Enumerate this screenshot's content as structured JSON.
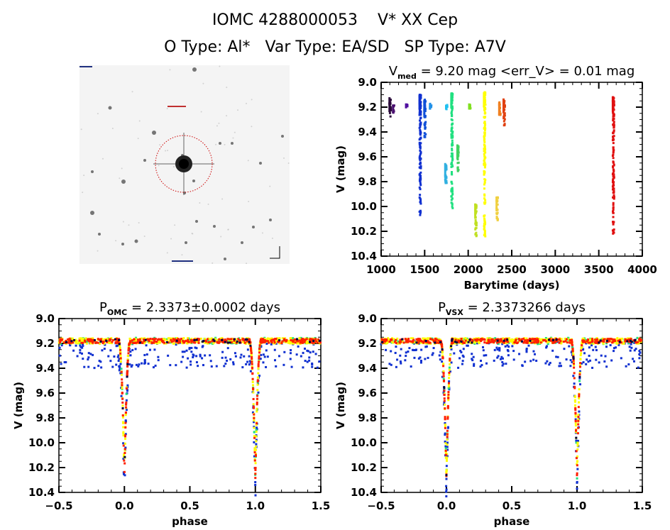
{
  "header": {
    "title": "IOMC 4288000053    V* XX Cep",
    "subtitle": "O Type: Al*   Var Type: EA/SD   SP Type: A7V"
  },
  "sky_image": {
    "description": "finder chart image",
    "target_circle_color": "#cc0000"
  },
  "chart_data": [
    {
      "id": "lightcurve",
      "type": "scatter",
      "title_main": "V",
      "title_sub": "med",
      "title_rest": " = 9.20 mag <err_V> = 0.01 mag",
      "xlabel": "Barytime (days)",
      "ylabel": "V (mag)",
      "xlim": [
        1000,
        4000
      ],
      "ylim": [
        10.4,
        9.0
      ],
      "xticks": [
        1000,
        1500,
        2000,
        2500,
        3000,
        3500,
        4000
      ],
      "yticks": [
        "9.0",
        "9.2",
        "9.4",
        "9.6",
        "9.8",
        "10.0",
        "10.2",
        "10.4"
      ],
      "ytick_values": [
        9.0,
        9.2,
        9.4,
        9.6,
        9.8,
        10.0,
        10.2,
        10.4
      ],
      "groups": [
        {
          "x": 1100,
          "ymin": 9.12,
          "ymax": 9.28,
          "color": "#2a0a3a"
        },
        {
          "x": 1140,
          "ymin": 9.18,
          "ymax": 9.25,
          "color": "#4a1070"
        },
        {
          "x": 1290,
          "ymin": 9.17,
          "ymax": 9.21,
          "color": "#5010a0"
        },
        {
          "x": 1445,
          "ymin": 9.1,
          "ymax": 10.08,
          "color": "#1030d0"
        },
        {
          "x": 1500,
          "ymin": 9.14,
          "ymax": 9.46,
          "color": "#1050d8"
        },
        {
          "x": 1565,
          "ymin": 9.17,
          "ymax": 9.22,
          "color": "#2090e8"
        },
        {
          "x": 1750,
          "ymin": 9.18,
          "ymax": 9.22,
          "color": "#20c0f0"
        },
        {
          "x": 1740,
          "ymin": 9.65,
          "ymax": 9.83,
          "color": "#30b0e0"
        },
        {
          "x": 1810,
          "ymin": 9.09,
          "ymax": 10.03,
          "color": "#20e080"
        },
        {
          "x": 1880,
          "ymin": 9.5,
          "ymax": 9.72,
          "color": "#40d060"
        },
        {
          "x": 2015,
          "ymin": 9.17,
          "ymax": 9.22,
          "color": "#80e020"
        },
        {
          "x": 2085,
          "ymin": 9.98,
          "ymax": 10.24,
          "color": "#c0e020"
        },
        {
          "x": 2185,
          "ymin": 9.08,
          "ymax": 10.3,
          "color": "#ffff00"
        },
        {
          "x": 2330,
          "ymin": 9.92,
          "ymax": 10.13,
          "color": "#f0d040"
        },
        {
          "x": 2360,
          "ymin": 9.16,
          "ymax": 9.27,
          "color": "#f08020"
        },
        {
          "x": 2410,
          "ymin": 9.13,
          "ymax": 9.35,
          "color": "#e04010"
        },
        {
          "x": 3665,
          "ymin": 9.12,
          "ymax": 10.22,
          "color": "#e01010"
        }
      ]
    },
    {
      "id": "phase_omc",
      "type": "scatter",
      "title_main": "P",
      "title_sub": "OMC",
      "title_rest": " = 2.3373±0.0002 days",
      "xlabel": "phase",
      "ylabel": "V (mag)",
      "xlim": [
        -0.5,
        1.5
      ],
      "ylim": [
        10.4,
        9.0
      ],
      "xticks": [
        "-0.5",
        "0.0",
        "0.5",
        "1.0",
        "1.5"
      ],
      "xtick_values": [
        -0.5,
        0.0,
        0.5,
        1.0,
        1.5
      ],
      "yticks": [
        "9.0",
        "9.2",
        "9.4",
        "9.6",
        "9.8",
        "10.0",
        "10.2",
        "10.4"
      ],
      "ytick_values": [
        9.0,
        9.2,
        9.4,
        9.6,
        9.8,
        10.0,
        10.2,
        10.4
      ],
      "model": {
        "out_of_eclipse_mag": 9.18,
        "primary_min_mag": 10.28,
        "eclipse_half_width_phase": 0.045,
        "primary_phases": [
          0.0,
          1.0
        ]
      },
      "series_colors": [
        "#1030d0",
        "#20e080",
        "#ffff00",
        "#ff2000",
        "#000040"
      ]
    },
    {
      "id": "phase_vsx",
      "type": "scatter",
      "title_main": "P",
      "title_sub": "VSX",
      "title_rest": " = 2.3373266 days",
      "xlabel": "phase",
      "ylabel": "V (mag)",
      "xlim": [
        -0.5,
        1.5
      ],
      "ylim": [
        10.4,
        9.0
      ],
      "xticks": [
        "-0.5",
        "0.0",
        "0.5",
        "1.0",
        "1.5"
      ],
      "xtick_values": [
        -0.5,
        0.0,
        0.5,
        1.0,
        1.5
      ],
      "yticks": [
        "9.0",
        "9.2",
        "9.4",
        "9.6",
        "9.8",
        "10.0",
        "10.2",
        "10.4"
      ],
      "ytick_values": [
        9.0,
        9.2,
        9.4,
        9.6,
        9.8,
        10.0,
        10.2,
        10.4
      ],
      "model": {
        "out_of_eclipse_mag": 9.18,
        "primary_min_mag": 10.28,
        "eclipse_half_width_phase": 0.045,
        "primary_phases": [
          0.0,
          1.0
        ]
      },
      "series_colors": [
        "#1030d0",
        "#20e080",
        "#ffff00",
        "#ff2000",
        "#000040"
      ]
    }
  ]
}
